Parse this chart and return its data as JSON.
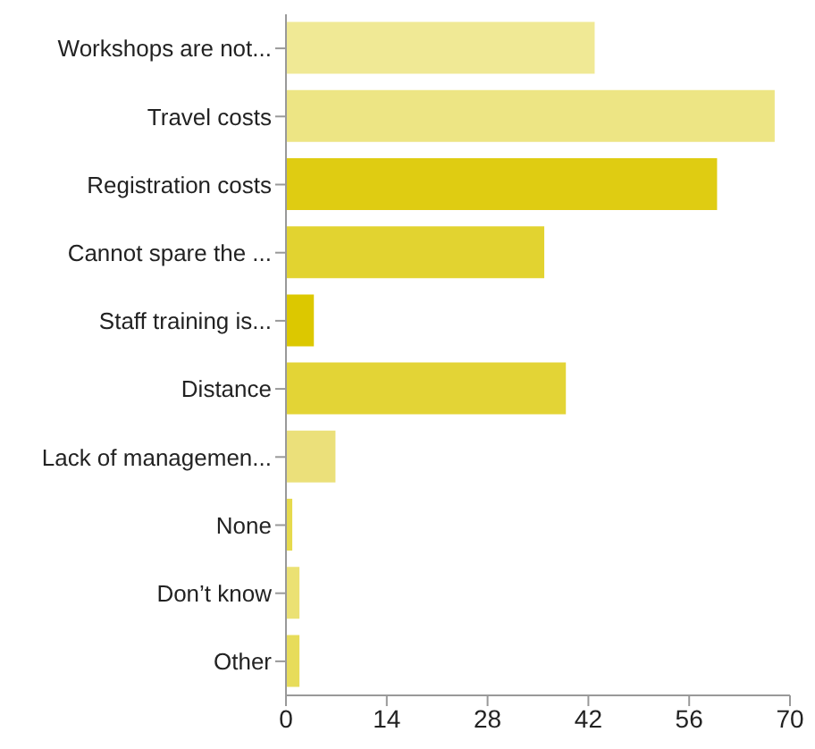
{
  "chart_data": {
    "type": "bar",
    "orientation": "horizontal",
    "categories": [
      "Workshops are not...",
      "Travel costs",
      "Registration costs",
      "Cannot spare the ...",
      "Staff training is...",
      "Distance",
      "Lack of managemen...",
      "None",
      "Don’t know",
      "Other"
    ],
    "values": [
      43,
      68,
      60,
      36,
      4,
      39,
      7,
      1,
      2,
      2
    ],
    "colors": [
      "#f0e995",
      "#ede584",
      "#dfcc12",
      "#e2d330",
      "#dcc800",
      "#e3d436",
      "#ebe07a",
      "#e6da4d",
      "#ebe173",
      "#e7dc5a"
    ],
    "xlim": [
      0,
      70
    ],
    "xticks": [
      0,
      14,
      28,
      42,
      56,
      70
    ],
    "grid": false
  }
}
